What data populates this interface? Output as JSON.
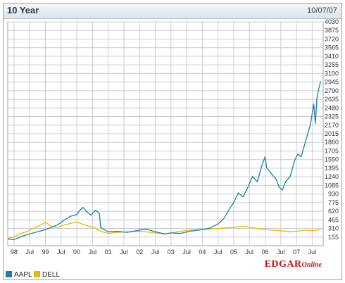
{
  "header": {
    "title": "10 Year",
    "date": "10/07/07"
  },
  "logo": {
    "main": "EDGAR",
    "sub": "Online"
  },
  "colors": {
    "aapl": "#1a80a6",
    "dell": "#f0b400",
    "grid": "#c8ccd0"
  },
  "chart_data": {
    "type": "line",
    "title": "10 Year",
    "xlabel": "",
    "ylabel": "",
    "ylim": [
      0,
      4030
    ],
    "xlim": [
      1997.8,
      2007.85
    ],
    "y_ticks": [
      155,
      310,
      465,
      620,
      775,
      930,
      1085,
      1240,
      1395,
      1550,
      1705,
      1860,
      2015,
      2170,
      2325,
      2480,
      2635,
      2790,
      2945,
      3100,
      3255,
      3410,
      3565,
      3720,
      3875,
      4030
    ],
    "x_ticks": [
      {
        "label": "98",
        "x": 1998.0
      },
      {
        "label": "Jul",
        "x": 1998.5
      },
      {
        "label": "99",
        "x": 1999.0
      },
      {
        "label": "Jul",
        "x": 1999.5
      },
      {
        "label": "00",
        "x": 2000.0
      },
      {
        "label": "Jul",
        "x": 2000.5
      },
      {
        "label": "01",
        "x": 2001.0
      },
      {
        "label": "Jul",
        "x": 2001.5
      },
      {
        "label": "02",
        "x": 2002.0
      },
      {
        "label": "Jul",
        "x": 2002.5
      },
      {
        "label": "03",
        "x": 2003.0
      },
      {
        "label": "Jul",
        "x": 2003.5
      },
      {
        "label": "04",
        "x": 2004.0
      },
      {
        "label": "Jul",
        "x": 2004.5
      },
      {
        "label": "05",
        "x": 2005.0
      },
      {
        "label": "Jul",
        "x": 2005.5
      },
      {
        "label": "06",
        "x": 2006.0
      },
      {
        "label": "Jul",
        "x": 2006.5
      },
      {
        "label": "07",
        "x": 2007.0
      },
      {
        "label": "Jul",
        "x": 2007.5
      }
    ],
    "grid": true,
    "legend": "bottom-left",
    "series": [
      {
        "name": "AAPL",
        "x": [
          1997.8,
          1998.0,
          1998.25,
          1998.5,
          1998.75,
          1999.0,
          1999.2,
          1999.4,
          1999.6,
          1999.8,
          2000.0,
          2000.1,
          2000.2,
          2000.3,
          2000.45,
          2000.6,
          2000.72,
          2000.76,
          2000.9,
          2001.0,
          2001.3,
          2001.6,
          2001.9,
          2002.2,
          2002.5,
          2002.8,
          2003.0,
          2003.3,
          2003.6,
          2003.9,
          2004.2,
          2004.5,
          2004.7,
          2004.85,
          2005.0,
          2005.15,
          2005.3,
          2005.45,
          2005.6,
          2005.75,
          2005.9,
          2006.0,
          2006.05,
          2006.2,
          2006.35,
          2006.45,
          2006.55,
          2006.65,
          2006.8,
          2006.95,
          2007.05,
          2007.15,
          2007.3,
          2007.45,
          2007.55,
          2007.6,
          2007.65,
          2007.7,
          2007.77
        ],
        "values": [
          120,
          110,
          170,
          210,
          250,
          290,
          330,
          380,
          460,
          530,
          560,
          640,
          690,
          620,
          550,
          640,
          580,
          330,
          280,
          250,
          260,
          240,
          270,
          300,
          250,
          210,
          230,
          220,
          260,
          280,
          310,
          390,
          500,
          650,
          780,
          950,
          880,
          1050,
          1250,
          1150,
          1450,
          1600,
          1400,
          1300,
          1200,
          1050,
          1000,
          1150,
          1250,
          1550,
          1650,
          1600,
          1900,
          2200,
          2550,
          2200,
          2650,
          2800,
          2960
        ]
      },
      {
        "name": "DELL",
        "x": [
          1997.8,
          1998.0,
          1998.2,
          1998.4,
          1998.6,
          1998.8,
          1999.0,
          1999.1,
          1999.2,
          1999.4,
          1999.6,
          1999.8,
          2000.0,
          2000.2,
          2000.4,
          2000.6,
          2000.8,
          2001.0,
          2001.3,
          2001.6,
          2001.9,
          2002.2,
          2002.5,
          2002.8,
          2003.0,
          2003.3,
          2003.6,
          2003.9,
          2004.2,
          2004.5,
          2004.8,
          2005.0,
          2005.3,
          2005.6,
          2005.9,
          2006.2,
          2006.5,
          2006.8,
          2007.0,
          2007.3,
          2007.5,
          2007.77
        ],
        "values": [
          130,
          160,
          220,
          250,
          310,
          360,
          420,
          380,
          350,
          330,
          370,
          400,
          430,
          380,
          350,
          310,
          250,
          220,
          240,
          250,
          260,
          250,
          230,
          210,
          230,
          260,
          280,
          290,
          300,
          310,
          320,
          330,
          350,
          320,
          300,
          280,
          270,
          250,
          260,
          280,
          270,
          290
        ]
      }
    ]
  }
}
